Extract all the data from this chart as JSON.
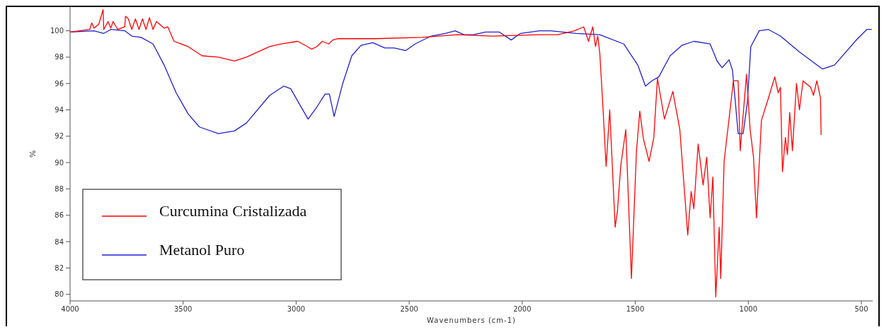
{
  "chart_data": {
    "type": "line",
    "xlabel": "Wavenumbers (cm-1)",
    "ylabel": "%",
    "xlim": [
      4000,
      450
    ],
    "ylim": [
      79.5,
      101.8
    ],
    "xticks": [
      4000,
      3500,
      3000,
      2500,
      2000,
      1500,
      1000,
      500
    ],
    "yticks": [
      80,
      82,
      84,
      86,
      88,
      90,
      92,
      94,
      96,
      98,
      100
    ],
    "legend": "bottom left",
    "grid": false,
    "line_style": "solid",
    "marker": "none",
    "series": [
      {
        "name": "Curcumina Cristalizada",
        "color": "#ff0000",
        "x": [
          4000,
          3913,
          3904,
          3894,
          3873,
          3854,
          3851,
          3832,
          3820,
          3810,
          3789,
          3758,
          3755,
          3742,
          3727,
          3711,
          3695,
          3680,
          3664,
          3649,
          3633,
          3618,
          3584,
          3568,
          3540,
          3478,
          3416,
          3344,
          3273,
          3220,
          3117,
          3065,
          2993,
          2950,
          2931,
          2909,
          2884,
          2856,
          2838,
          2816,
          2651,
          2443,
          2288,
          2132,
          1924,
          1843,
          1769,
          1728,
          1707,
          1688,
          1676,
          1666,
          1657,
          1645,
          1629,
          1613,
          1589,
          1579,
          1564,
          1542,
          1517,
          1495,
          1480,
          1464,
          1439,
          1418,
          1402,
          1371,
          1334,
          1303,
          1268,
          1253,
          1241,
          1222,
          1200,
          1184,
          1169,
          1157,
          1144,
          1129,
          1122,
          1107,
          1066,
          1045,
          1036,
          1008,
          992,
          977,
          964,
          942,
          911,
          883,
          868,
          858,
          849,
          836,
          827,
          817,
          805,
          787,
          774,
          758,
          724,
          712,
          697,
          681,
          678
        ],
        "values": [
          99.9,
          100.1,
          100.6,
          100.2,
          100.5,
          101.6,
          100.1,
          100.7,
          100.2,
          100.7,
          100.1,
          100.3,
          101.1,
          100.9,
          100.1,
          100.9,
          100.1,
          100.9,
          100.1,
          101.0,
          100.1,
          100.7,
          100.2,
          100.3,
          99.2,
          98.8,
          98.1,
          98.0,
          97.7,
          98.0,
          98.8,
          99.0,
          99.2,
          98.8,
          98.6,
          98.8,
          99.2,
          99.0,
          99.3,
          99.4,
          99.4,
          99.5,
          99.7,
          99.6,
          99.7,
          99.7,
          100.0,
          100.3,
          99.2,
          100.3,
          98.8,
          99.6,
          98.3,
          94.8,
          89.7,
          94.0,
          85.1,
          86.3,
          89.8,
          92.5,
          81.2,
          90.8,
          93.9,
          91.8,
          90.1,
          91.9,
          96.4,
          93.3,
          95.4,
          92.5,
          84.5,
          87.8,
          86.5,
          91.4,
          88.3,
          90.4,
          85.8,
          88.9,
          79.8,
          85.1,
          81.2,
          90.1,
          96.2,
          96.2,
          90.9,
          96.7,
          92.5,
          90.4,
          85.8,
          93.2,
          94.9,
          96.5,
          95.3,
          95.7,
          89.3,
          91.9,
          90.6,
          93.8,
          90.9,
          96.0,
          94.0,
          96.2,
          95.7,
          95.1,
          96.2,
          94.9,
          92.1
        ]
      },
      {
        "name": "Metanol Puro",
        "color": "#2020d0",
        "x": [
          4000,
          3894,
          3851,
          3820,
          3758,
          3727,
          3686,
          3633,
          3584,
          3531,
          3478,
          3428,
          3344,
          3273,
          3220,
          3117,
          3055,
          3024,
          2981,
          2947,
          2909,
          2872,
          2853,
          2832,
          2794,
          2754,
          2713,
          2661,
          2608,
          2567,
          2515,
          2474,
          2403,
          2341,
          2297,
          2257,
          2216,
          2163,
          2101,
          2049,
          2008,
          1924,
          1874,
          1760,
          1657,
          1551,
          1489,
          1455,
          1427,
          1396,
          1346,
          1293,
          1241,
          1169,
          1138,
          1116,
          1085,
          1070,
          1045,
          1023,
          1004,
          989,
          952,
          911,
          858,
          774,
          672,
          619,
          517,
          476,
          454
        ],
        "values": [
          99.9,
          100.0,
          99.8,
          100.1,
          100.0,
          99.6,
          99.5,
          99.0,
          97.4,
          95.3,
          93.7,
          92.7,
          92.2,
          92.4,
          93.0,
          95.1,
          95.8,
          95.6,
          94.3,
          93.3,
          94.2,
          95.2,
          95.2,
          93.5,
          96.0,
          98.1,
          98.9,
          99.1,
          98.7,
          98.7,
          98.5,
          99.0,
          99.6,
          99.8,
          100.0,
          99.7,
          99.7,
          99.9,
          99.9,
          99.3,
          99.8,
          100.0,
          100.0,
          99.8,
          99.7,
          99.0,
          97.4,
          95.8,
          96.2,
          96.5,
          98.1,
          98.9,
          99.2,
          99.0,
          97.7,
          97.2,
          97.8,
          97.0,
          92.2,
          92.2,
          94.6,
          98.8,
          100.0,
          100.1,
          99.6,
          98.4,
          97.1,
          97.4,
          99.4,
          100.1,
          100.1
        ]
      }
    ]
  }
}
